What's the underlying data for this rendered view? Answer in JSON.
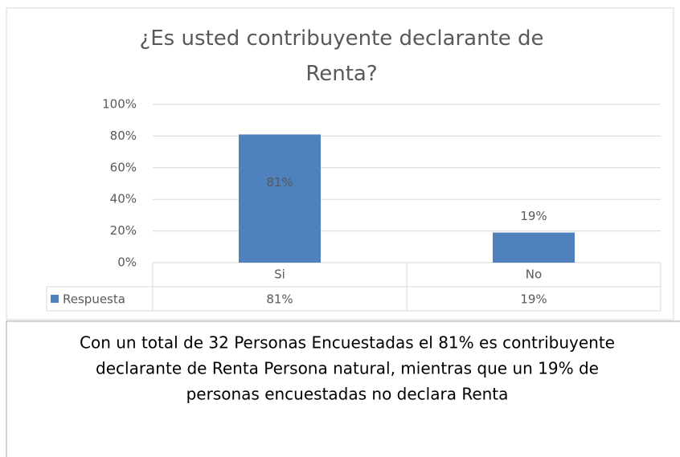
{
  "chart_data": {
    "type": "bar",
    "title": "¿Es usted contribuyente declarante de Renta?",
    "categories": [
      "Si",
      "No"
    ],
    "series": [
      {
        "name": "Respuesta",
        "color": "#4f81bd",
        "values": [
          81,
          19
        ],
        "value_labels": [
          "81%",
          "19%"
        ]
      }
    ],
    "ylim": [
      0,
      100
    ],
    "yticks": [
      {
        "value": 0,
        "label": "0%"
      },
      {
        "value": 20,
        "label": "20%"
      },
      {
        "value": 40,
        "label": "40%"
      },
      {
        "value": 60,
        "label": "60%"
      },
      {
        "value": 80,
        "label": "80%"
      },
      {
        "value": 100,
        "label": "100%"
      }
    ],
    "grid": true,
    "data_table": true
  },
  "caption_lines": [
    "Con un total de 32 Personas Encuestadas el 81% es contribuyente",
    "declarante de Renta Persona natural, mientras que un 19% de",
    "personas encuestadas no declara Renta"
  ]
}
